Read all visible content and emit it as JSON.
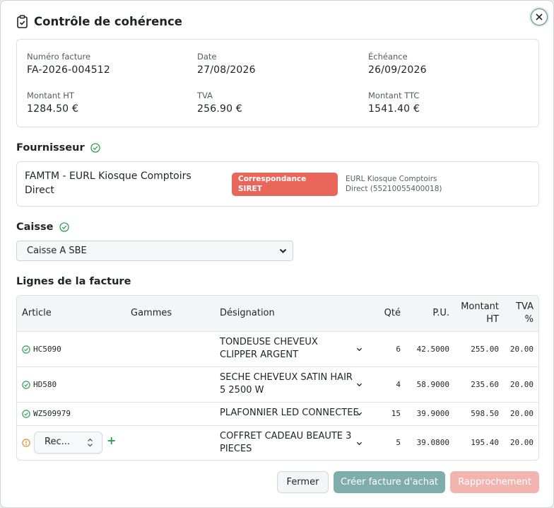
{
  "dialog": {
    "title": "Contrôle de cohérence"
  },
  "invoice": {
    "number_label": "Numéro facture",
    "number": "FA-2026-004512",
    "date_label": "Date",
    "date": "27/08/2026",
    "due_label": "Échéance",
    "due": "26/09/2026",
    "ht_label": "Montant HT",
    "ht": "1284.50 €",
    "tva_label": "TVA",
    "tva": "256.90 €",
    "ttc_label": "Montant TTC",
    "ttc": "1541.40 €"
  },
  "supplier": {
    "heading": "Fournisseur",
    "name": "FAMTM  -  EURL Kiosque Comptoirs Direct",
    "badge": "Correspondance SIRET",
    "match": "EURL Kiosque Comptoirs Direct (55210055400018)"
  },
  "caisse": {
    "heading": "Caisse",
    "selected": "Caisse A SBE"
  },
  "lines": {
    "heading": "Lignes de la facture",
    "columns": {
      "article": "Article",
      "gammes": "Gammes",
      "designation": "Désignation",
      "qte": "Qté",
      "pu": "P.U.",
      "montant": "Montant HT",
      "tva": "TVA %"
    },
    "rows": [
      {
        "article": "HC5090",
        "designation": "TONDEUSE CHEVEUX CLIPPER ARGENT",
        "qte": "6",
        "pu": "42.5000",
        "montant": "255.00",
        "tva": "20.00",
        "status": "ok"
      },
      {
        "article": "HD580",
        "designation": "SECHE CHEVEUX SATIN HAIR 5 2500 W",
        "qte": "4",
        "pu": "58.9000",
        "montant": "235.60",
        "tva": "20.00",
        "status": "ok"
      },
      {
        "article": "WZ509979",
        "designation": "PLAFONNIER LED CONNECTEE",
        "qte": "15",
        "pu": "39.9000",
        "montant": "598.50",
        "tva": "20.00",
        "status": "ok"
      },
      {
        "article_select": "Rec...",
        "designation": "COFFRET CADEAU BEAUTE 3 PIECES",
        "qte": "5",
        "pu": "39.0800",
        "montant": "195.40",
        "tva": "20.00",
        "status": "warning"
      }
    ]
  },
  "actions": {
    "close": "Fermer",
    "create": "Créer facture d'achat",
    "match": "Rapprochement"
  },
  "colors": {
    "ok": "#2f9e5a",
    "warning": "#e8882e",
    "badge": "#e8665a",
    "primary": "#7fadaa"
  }
}
